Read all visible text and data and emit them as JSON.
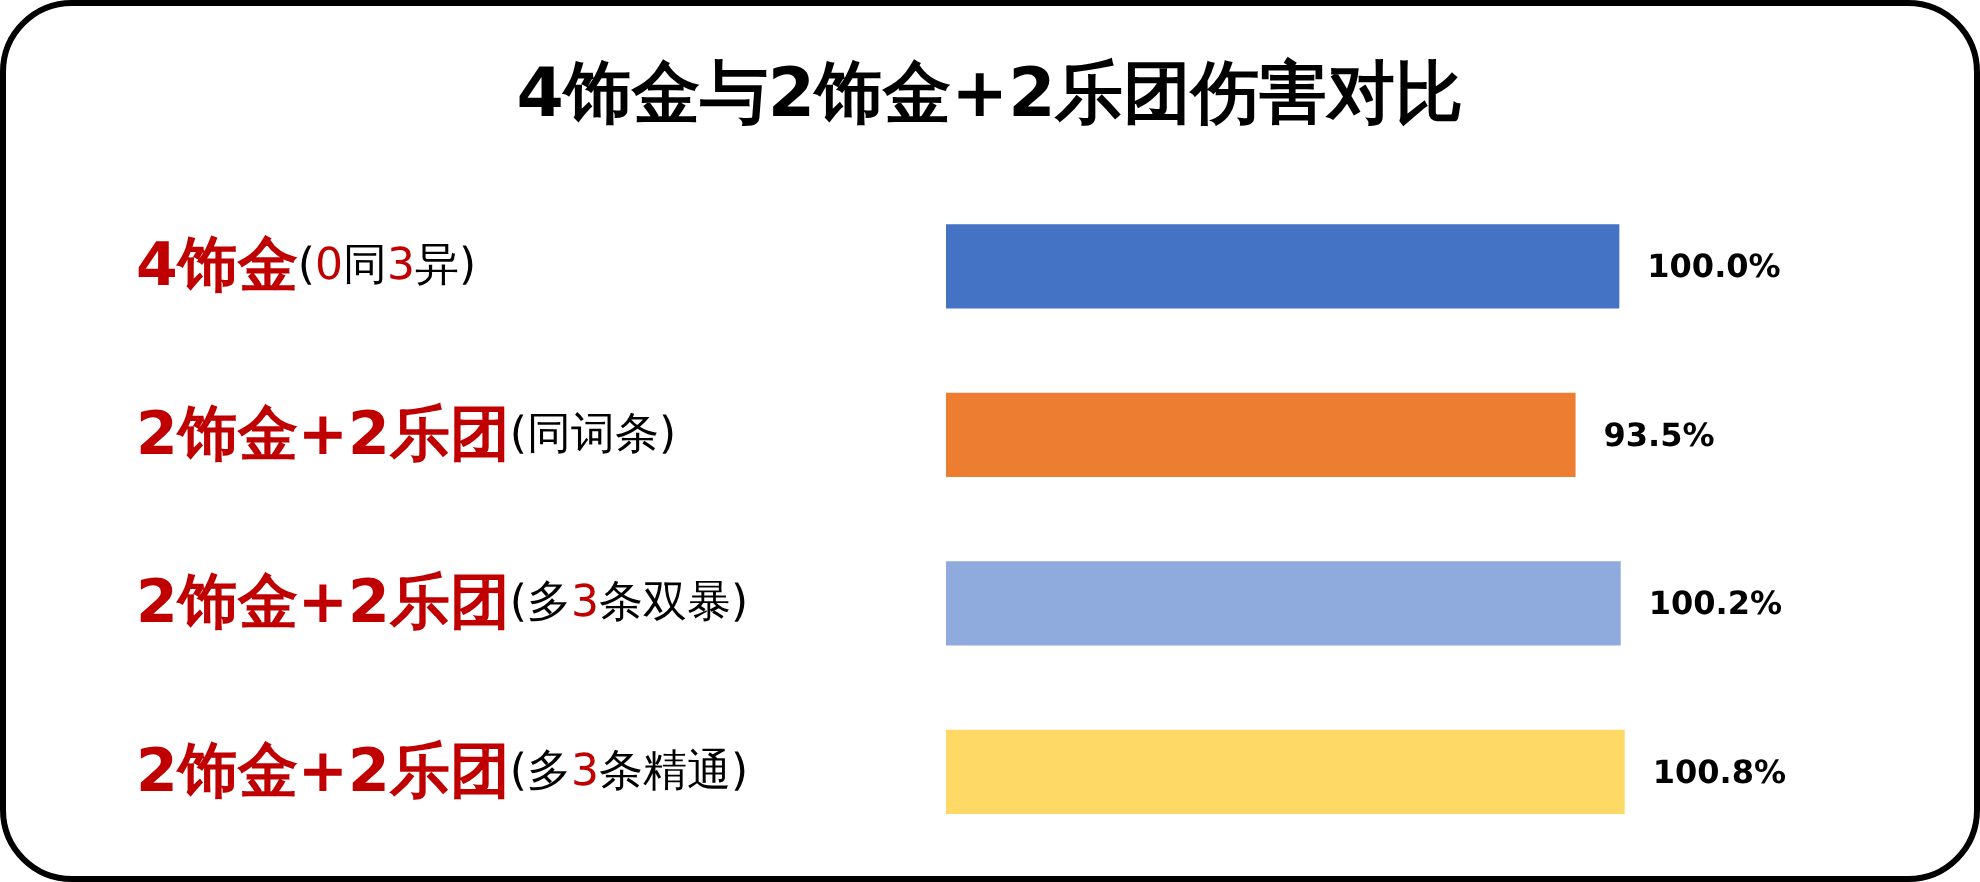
{
  "chart_data": {
    "type": "bar",
    "orientation": "horizontal",
    "title": "4饰金与2饰金+2乐团伤害对比",
    "categories": [
      "4饰金(0同3异)",
      "2饰金+2乐团(同词条)",
      "2饰金+2乐团(多3条双暴)",
      "2饰金+2乐团(多3条精通)"
    ],
    "values": [
      100.0,
      93.5,
      100.2,
      100.8
    ],
    "colors": [
      "#4472c4",
      "#ed7d31",
      "#8faadc",
      "#ffd966"
    ],
    "value_labels": [
      "100.0%",
      "93.5%",
      "100.2%",
      "100.8%"
    ],
    "tick_labels": "y"
  }
}
